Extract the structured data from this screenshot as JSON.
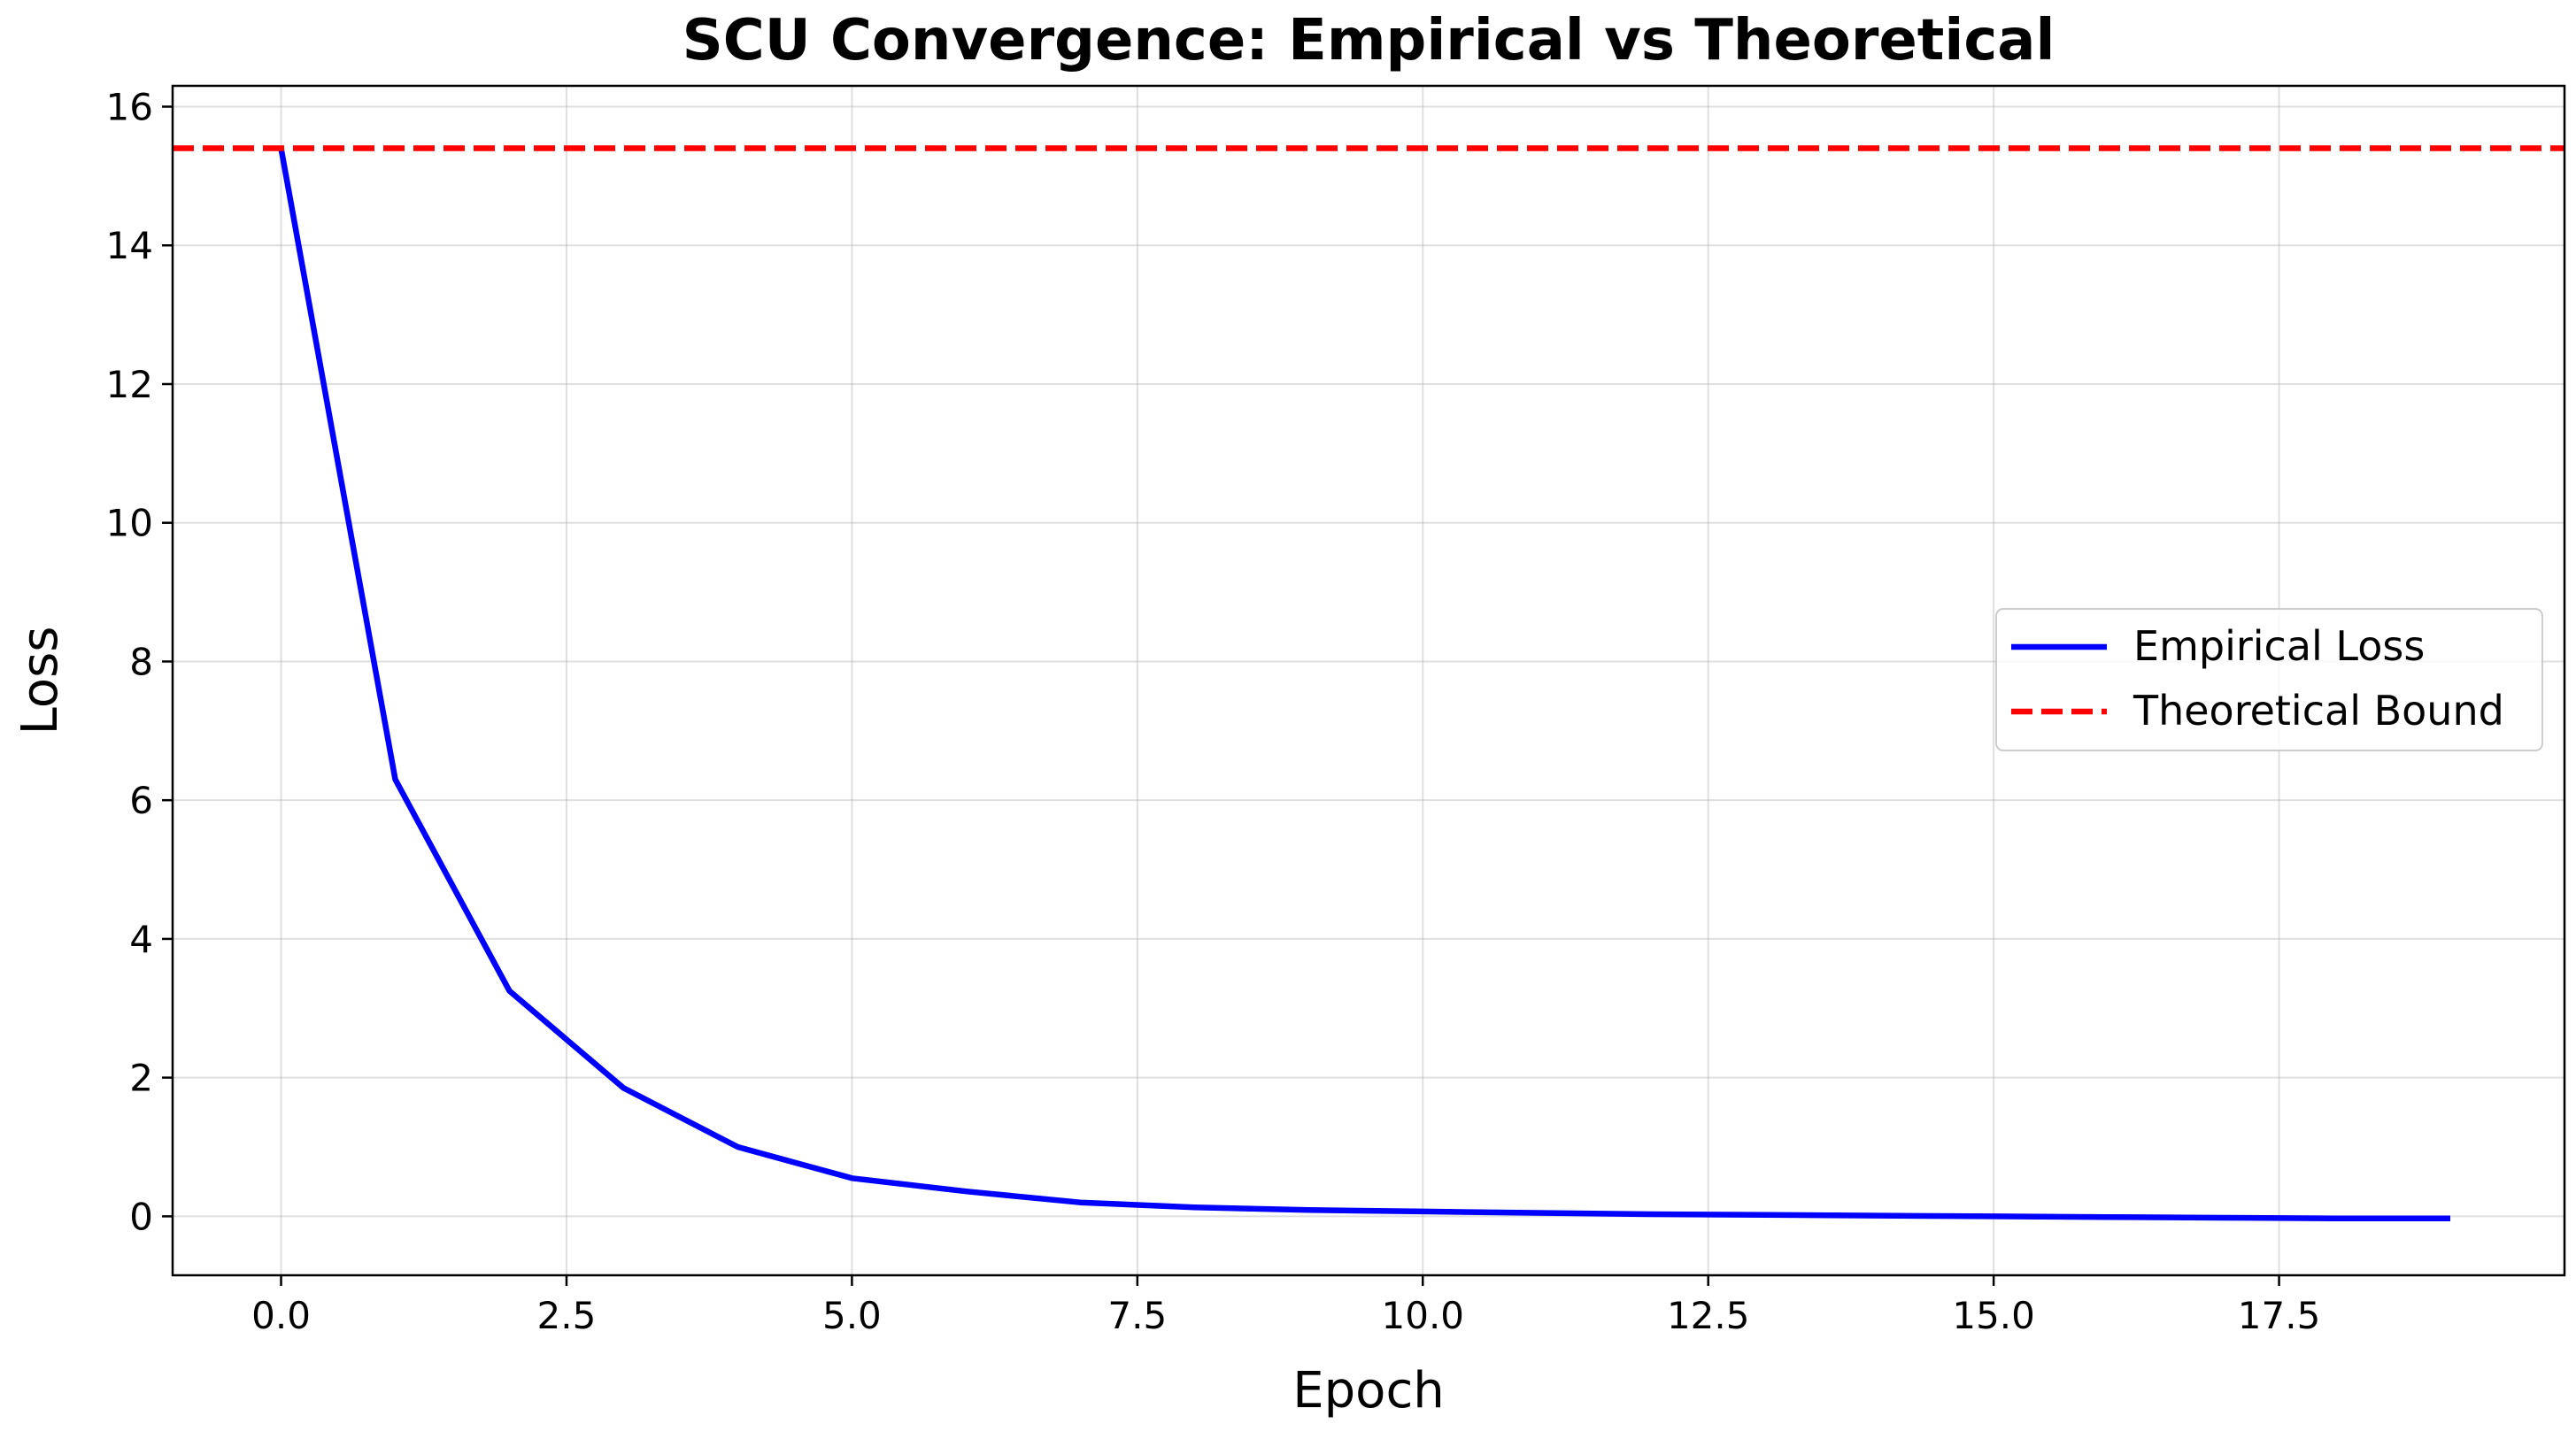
{
  "chart_data": {
    "type": "line",
    "title": "SCU Convergence: Empirical vs Theoretical",
    "xlabel": "Epoch",
    "ylabel": "Loss",
    "xlim": [
      -0.95,
      20
    ],
    "ylim": [
      -0.85,
      16.3
    ],
    "x_ticks": [
      0.0,
      2.5,
      5.0,
      7.5,
      10.0,
      12.5,
      15.0,
      17.5
    ],
    "x_tick_labels": [
      "0.0",
      "2.5",
      "5.0",
      "7.5",
      "10.0",
      "12.5",
      "15.0",
      "17.5"
    ],
    "y_ticks": [
      0,
      2,
      4,
      6,
      8,
      10,
      12,
      14,
      16
    ],
    "y_tick_labels": [
      "0",
      "2",
      "4",
      "6",
      "8",
      "10",
      "12",
      "14",
      "16"
    ],
    "grid": true,
    "legend_position": "center-right",
    "series": [
      {
        "name": "Empirical Loss",
        "color": "#0000ff",
        "style": "solid",
        "x": [
          0,
          1,
          2,
          3,
          4,
          5,
          6,
          7,
          8,
          9,
          10,
          11,
          12,
          13,
          14,
          15,
          16,
          17,
          18,
          19
        ],
        "values": [
          15.4,
          6.3,
          3.25,
          1.85,
          1.0,
          0.55,
          0.36,
          0.2,
          0.13,
          0.09,
          0.07,
          0.05,
          0.03,
          0.02,
          0.01,
          0.0,
          -0.01,
          -0.02,
          -0.03,
          -0.03
        ]
      },
      {
        "name": "Theoretical Bound",
        "color": "#ff0000",
        "style": "dashed",
        "constant": 15.4
      }
    ]
  }
}
